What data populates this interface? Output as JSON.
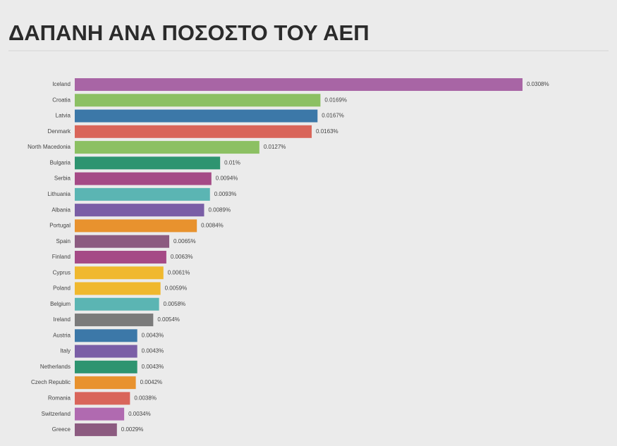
{
  "chart_data": {
    "type": "bar",
    "orientation": "horizontal",
    "title": "ΔΑΠΑΝΗ ΑΝΑ ΠΟΣΟΣΤΟ ΤΟΥ ΑΕΠ",
    "categories": [
      "Iceland",
      "Croatia",
      "Latvia",
      "Denmark",
      "North Macedonia",
      "Bulgaria",
      "Serbia",
      "Lithuania",
      "Albania",
      "Portugal",
      "Spain",
      "Finland",
      "Cyprus",
      "Poland",
      "Belgium",
      "Ireland",
      "Austria",
      "Italy",
      "Netherlands",
      "Czech Republic",
      "Romania",
      "Switzerland",
      "Greece"
    ],
    "values": [
      0.0308,
      0.0169,
      0.0167,
      0.0163,
      0.0127,
      0.01,
      0.0094,
      0.0093,
      0.0089,
      0.0084,
      0.0065,
      0.0063,
      0.0061,
      0.0059,
      0.0058,
      0.0054,
      0.0043,
      0.0043,
      0.0043,
      0.0042,
      0.0038,
      0.0034,
      0.0029
    ],
    "value_labels": [
      "0.0308%",
      "0.0169%",
      "0.0167%",
      "0.0163%",
      "0.0127%",
      "0.01%",
      "0.0094%",
      "0.0093%",
      "0.0089%",
      "0.0084%",
      "0.0065%",
      "0.0063%",
      "0.0061%",
      "0.0059%",
      "0.0058%",
      "0.0054%",
      "0.0043%",
      "0.0043%",
      "0.0043%",
      "0.0042%",
      "0.0038%",
      "0.0034%",
      "0.0029%"
    ],
    "colors": [
      "#a865a5",
      "#8cc063",
      "#3c78a8",
      "#d9655a",
      "#8cc063",
      "#2e9470",
      "#a54a86",
      "#5bb5b3",
      "#7a5ea6",
      "#e8922e",
      "#8c5b80",
      "#a54a86",
      "#f0b82e",
      "#f0b82e",
      "#5bb5b3",
      "#7b7b7b",
      "#3c78a8",
      "#7a5ea6",
      "#2e9470",
      "#e8922e",
      "#d9655a",
      "#b06ab0",
      "#8c5b80"
    ]
  }
}
